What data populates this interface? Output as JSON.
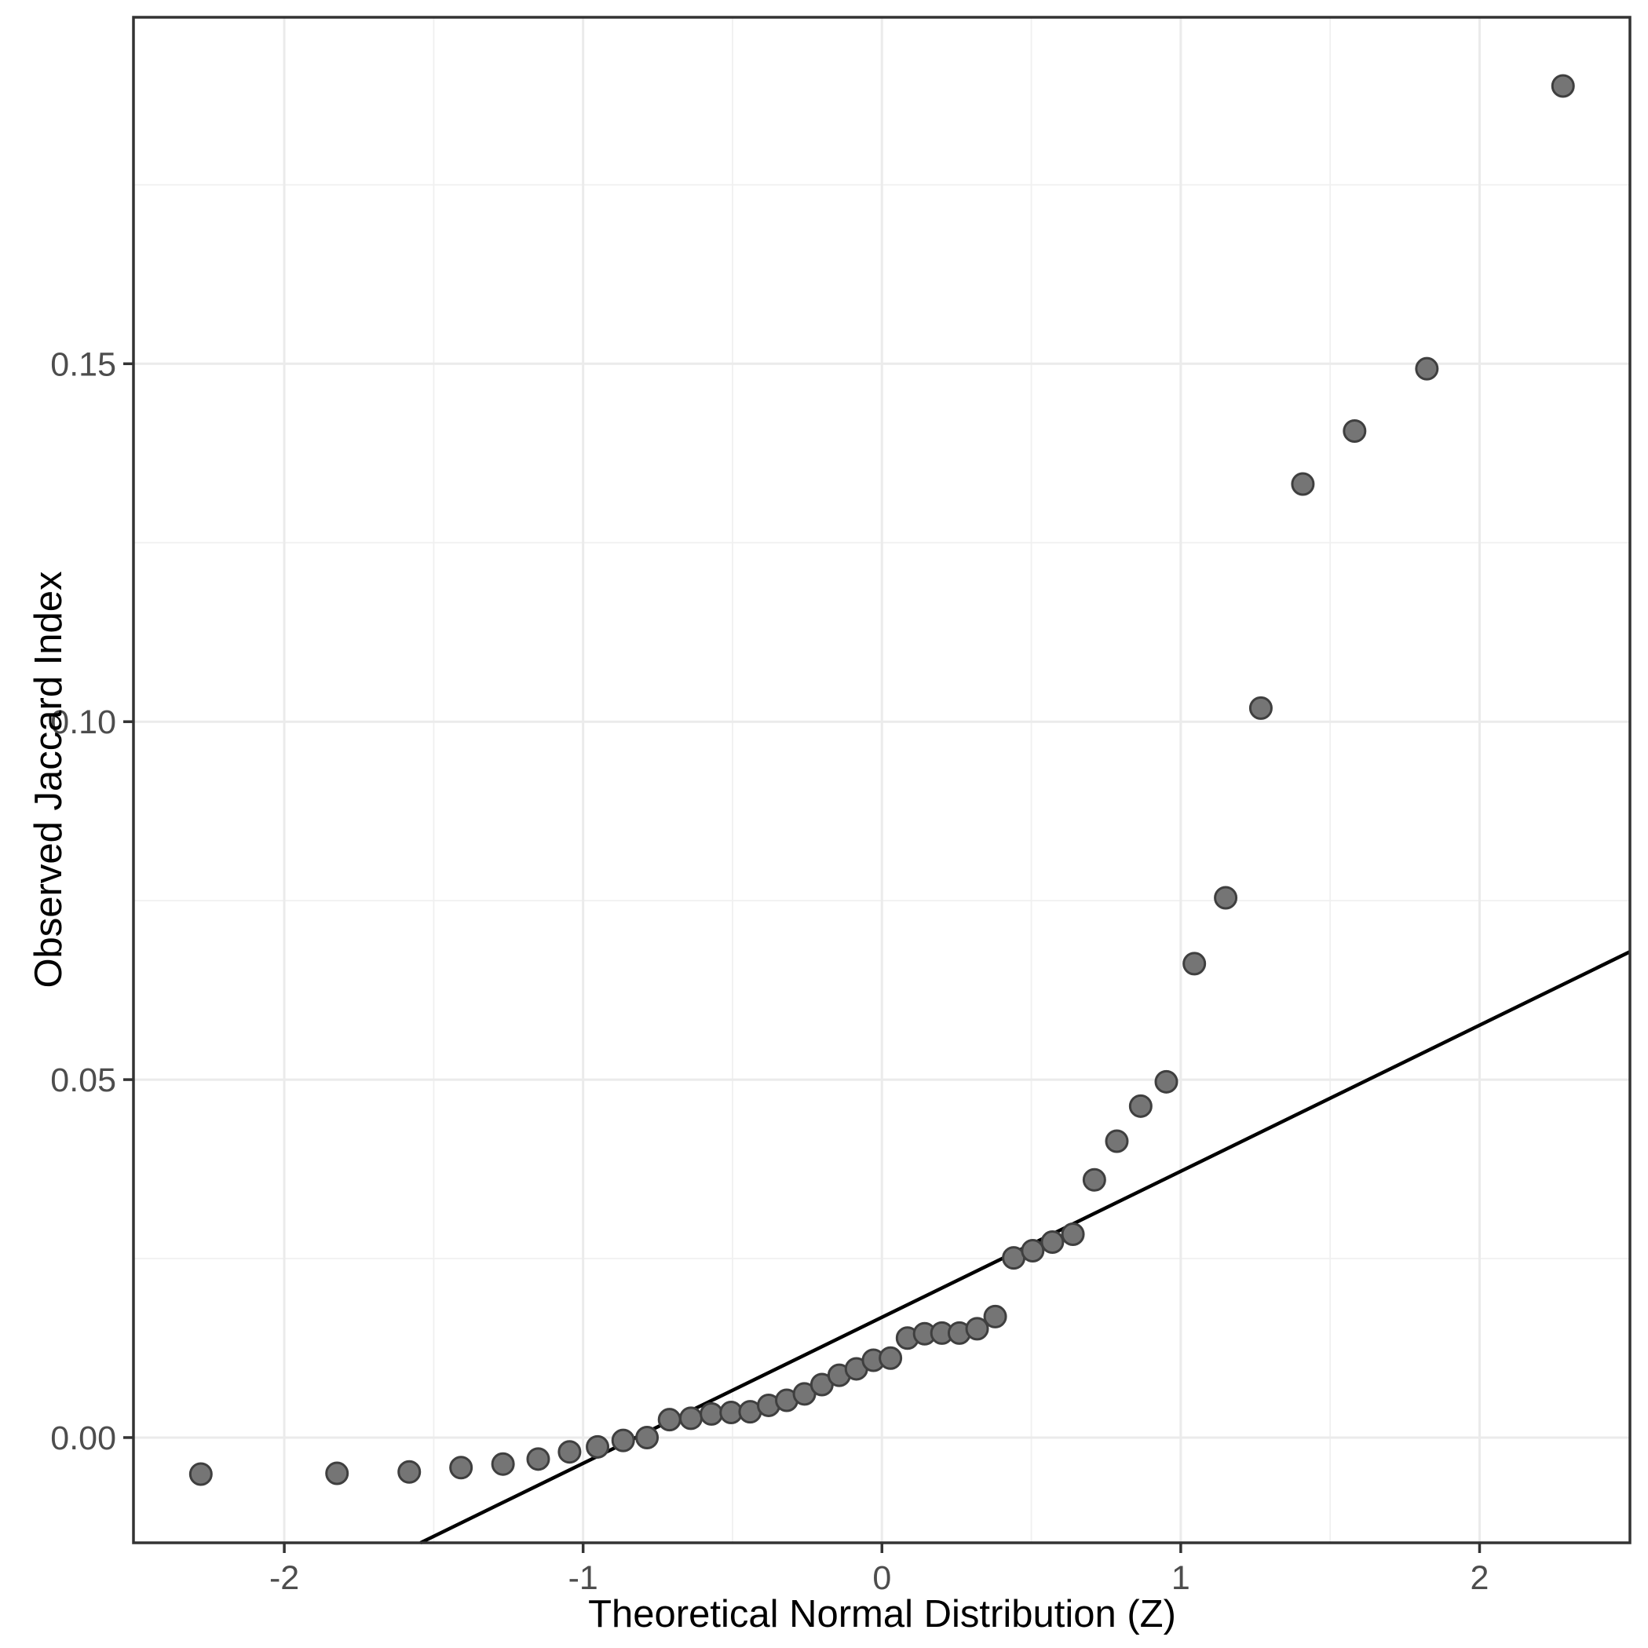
{
  "colors": {
    "background": "#ffffff",
    "panel_background": "#ffffff",
    "panel_border": "#333333",
    "grid_major": "#ebebeb",
    "grid_minor": "#f0f0f0",
    "tick_mark": "#333333",
    "tick_label": "#4d4d4d",
    "axis_title": "#000000",
    "point_fill": "#757575",
    "point_stroke": "#3f3f3f",
    "reference_line": "#000000"
  },
  "axes": {
    "x": {
      "title": "Theoretical Normal Distribution (Z)",
      "tick_values": [
        -2,
        -1,
        0,
        1,
        2
      ],
      "tick_labels": [
        "-2",
        "-1",
        "0",
        "1",
        "2"
      ],
      "minor_gridlines": [
        -1.5,
        -0.5,
        0.5,
        1.5
      ]
    },
    "y": {
      "title": "Observed Jaccard Index",
      "tick_values": [
        0.0,
        0.05,
        0.1,
        0.15
      ],
      "tick_labels": [
        "0.00",
        "0.05",
        "0.10",
        "0.15"
      ],
      "minor_gridlines": [
        0.025,
        0.075,
        0.125,
        0.175
      ]
    }
  },
  "chart_data": {
    "type": "scatter",
    "title": "",
    "xlabel": "Theoretical Normal Distribution (Z)",
    "ylabel": "Observed Jaccard Index",
    "xlim": [
      -2.5047,
      2.5032
    ],
    "ylim": [
      -0.0147,
      0.1984
    ],
    "grid": "on",
    "n_points": 44,
    "points": [
      {
        "z": -2.2792,
        "value": -0.0051
      },
      {
        "z": -1.8236,
        "value": -0.005
      },
      {
        "z": -1.5818,
        "value": -0.0048
      },
      {
        "z": -1.4086,
        "value": -0.0042
      },
      {
        "z": -1.2681,
        "value": -0.0037
      },
      {
        "z": -1.1503,
        "value": -0.003
      },
      {
        "z": -1.0454,
        "value": -0.002
      },
      {
        "z": -0.9517,
        "value": -0.0013
      },
      {
        "z": -0.8659,
        "value": -0.0004
      },
      {
        "z": -0.7861,
        "value": 0.0
      },
      {
        "z": -0.7109,
        "value": 0.0025
      },
      {
        "z": -0.6392,
        "value": 0.0027
      },
      {
        "z": -0.5705,
        "value": 0.0033
      },
      {
        "z": -0.5046,
        "value": 0.0035
      },
      {
        "z": -0.441,
        "value": 0.0036
      },
      {
        "z": -0.3791,
        "value": 0.0045
      },
      {
        "z": -0.3186,
        "value": 0.0052
      },
      {
        "z": -0.2593,
        "value": 0.0061
      },
      {
        "z": -0.2008,
        "value": 0.0074
      },
      {
        "z": -0.1429,
        "value": 0.0087
      },
      {
        "z": -0.0855,
        "value": 0.0096
      },
      {
        "z": -0.0285,
        "value": 0.0108
      },
      {
        "z": 0.0285,
        "value": 0.0111
      },
      {
        "z": 0.0855,
        "value": 0.0139
      },
      {
        "z": 0.1429,
        "value": 0.0145
      },
      {
        "z": 0.2008,
        "value": 0.0146
      },
      {
        "z": 0.2593,
        "value": 0.0146
      },
      {
        "z": 0.3186,
        "value": 0.0152
      },
      {
        "z": 0.3791,
        "value": 0.0169
      },
      {
        "z": 0.441,
        "value": 0.0251
      },
      {
        "z": 0.5046,
        "value": 0.0261
      },
      {
        "z": 0.5705,
        "value": 0.0273
      },
      {
        "z": 0.6392,
        "value": 0.0284
      },
      {
        "z": 0.7109,
        "value": 0.036
      },
      {
        "z": 0.7861,
        "value": 0.0414
      },
      {
        "z": 0.8659,
        "value": 0.0463
      },
      {
        "z": 0.9517,
        "value": 0.0497
      },
      {
        "z": 1.0454,
        "value": 0.0662
      },
      {
        "z": 1.1503,
        "value": 0.0754
      },
      {
        "z": 1.2681,
        "value": 0.1019
      },
      {
        "z": 1.4086,
        "value": 0.1332
      },
      {
        "z": 1.5818,
        "value": 0.1406
      },
      {
        "z": 1.8236,
        "value": 0.1493
      },
      {
        "z": 2.2792,
        "value": 0.1888
      }
    ],
    "reference_line": {
      "slope": 0.0204,
      "intercept": 0.0168
    },
    "legend": "none"
  }
}
